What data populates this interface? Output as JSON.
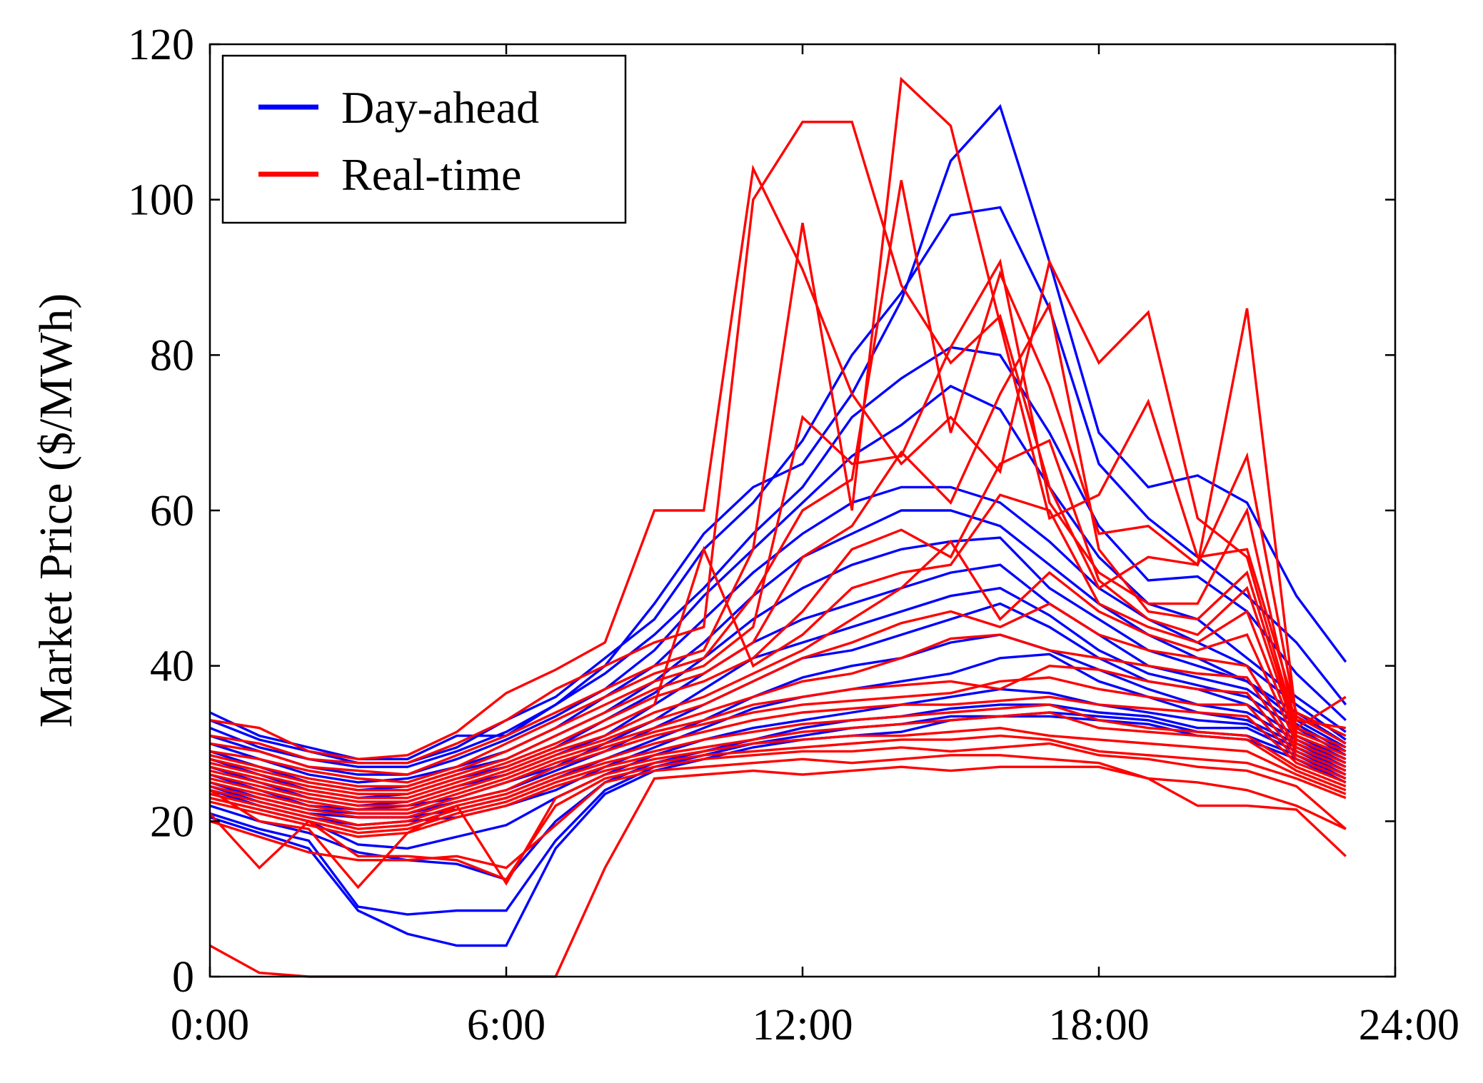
{
  "chart_data": {
    "type": "line",
    "title": "",
    "xlabel": "",
    "ylabel": "Market Price ($/MWh)",
    "xlim": [
      0,
      24
    ],
    "ylim": [
      0,
      120
    ],
    "grid": false,
    "legend_position": "top-left",
    "x_ticks": [
      0,
      6,
      12,
      18,
      24
    ],
    "x_tick_labels": [
      "0:00",
      "6:00",
      "12:00",
      "18:00",
      "24:00"
    ],
    "y_ticks": [
      0,
      20,
      40,
      60,
      80,
      100,
      120
    ],
    "y_tick_labels": [
      "0",
      "20",
      "40",
      "60",
      "80",
      "100",
      "120"
    ],
    "hours": [
      0,
      1,
      2,
      3,
      4,
      5,
      6,
      7,
      8,
      9,
      10,
      11,
      12,
      13,
      14,
      15,
      16,
      17,
      18,
      19,
      20,
      21,
      22,
      23
    ],
    "series": [
      {
        "name": "Day-ahead",
        "color": "#0000ff",
        "lines": [
          [
            34.0,
            31.0,
            29.5,
            28.0,
            28.0,
            31.0,
            31.0,
            35.0,
            40.0,
            48.0,
            57.0,
            63.0,
            66.0,
            75.0,
            87.0,
            105.0,
            112.0,
            92.0,
            70.0,
            63.0,
            64.5,
            61.0,
            49.0,
            40.5
          ],
          [
            33.0,
            30.5,
            29.0,
            27.5,
            27.5,
            29.5,
            33.0,
            36.0,
            41.0,
            46.0,
            55.0,
            61.0,
            69.0,
            80.0,
            88.0,
            98.0,
            99.0,
            86.0,
            66.0,
            59.0,
            54.0,
            49.0,
            43.0,
            35.0
          ],
          [
            32.0,
            29.5,
            28.0,
            27.0,
            27.0,
            29.0,
            31.5,
            35.0,
            39.0,
            44.0,
            50.0,
            57.0,
            63.0,
            72.0,
            77.0,
            81.0,
            80.0,
            70.0,
            58.0,
            51.0,
            51.5,
            47.0,
            39.0,
            33.0
          ],
          [
            31.0,
            29.0,
            27.0,
            26.0,
            26.0,
            28.0,
            30.5,
            33.5,
            37.0,
            42.0,
            49.0,
            55.0,
            61.0,
            67.0,
            71.0,
            76.0,
            73.0,
            63.0,
            54.0,
            48.0,
            46.0,
            41.0,
            36.0,
            31.5
          ],
          [
            30.0,
            28.0,
            26.0,
            25.0,
            25.5,
            27.0,
            29.0,
            32.0,
            36.0,
            40.0,
            46.0,
            52.0,
            57.0,
            61.0,
            63.0,
            63.0,
            61.0,
            56.0,
            50.0,
            46.0,
            43.0,
            40.0,
            35.0,
            30.5
          ],
          [
            29.0,
            27.0,
            25.0,
            24.0,
            24.5,
            26.5,
            28.0,
            31.0,
            34.0,
            38.0,
            43.0,
            49.0,
            54.0,
            57.0,
            60.0,
            60.0,
            58.0,
            53.0,
            48.0,
            44.0,
            41.0,
            38.0,
            34.0,
            30.0
          ],
          [
            28.0,
            26.0,
            24.0,
            23.0,
            23.5,
            25.5,
            27.0,
            29.5,
            33.0,
            36.5,
            41.0,
            46.0,
            50.0,
            53.0,
            55.0,
            56.0,
            56.5,
            50.0,
            46.0,
            42.0,
            40.0,
            38.0,
            33.0,
            29.5
          ],
          [
            27.0,
            25.0,
            23.0,
            22.0,
            22.5,
            24.5,
            26.0,
            28.5,
            31.0,
            35.0,
            39.0,
            43.0,
            46.0,
            48.0,
            50.0,
            52.0,
            53.0,
            48.0,
            44.0,
            40.0,
            38.5,
            37.0,
            32.5,
            29.0
          ],
          [
            26.0,
            24.0,
            22.0,
            21.5,
            22.0,
            23.0,
            25.0,
            27.0,
            30.0,
            33.0,
            37.0,
            41.0,
            43.0,
            45.0,
            47.0,
            49.0,
            50.0,
            46.5,
            42.0,
            39.0,
            37.5,
            36.0,
            32.0,
            28.5
          ],
          [
            25.0,
            23.0,
            21.5,
            21.0,
            21.0,
            22.5,
            24.0,
            26.5,
            29.0,
            32.0,
            35.0,
            38.0,
            41.0,
            42.0,
            44.0,
            46.0,
            48.0,
            45.0,
            41.0,
            38.0,
            37.0,
            35.0,
            31.0,
            28.0
          ],
          [
            24.5,
            22.5,
            21.0,
            20.5,
            20.5,
            21.5,
            23.0,
            25.5,
            28.0,
            30.5,
            33.0,
            36.0,
            38.5,
            40.0,
            41.0,
            43.0,
            44.0,
            42.0,
            39.5,
            37.0,
            35.0,
            34.0,
            30.5,
            27.5
          ],
          [
            24.0,
            22.0,
            20.5,
            19.5,
            20.0,
            20.5,
            22.0,
            24.0,
            27.0,
            29.5,
            32.0,
            34.5,
            36.0,
            37.0,
            38.0,
            39.0,
            41.0,
            41.5,
            38.0,
            36.0,
            34.0,
            33.0,
            30.0,
            27.0
          ],
          [
            23.0,
            21.5,
            20.0,
            17.0,
            16.5,
            18.0,
            19.5,
            23.0,
            26.0,
            28.5,
            30.5,
            32.0,
            33.0,
            34.0,
            35.0,
            36.0,
            37.0,
            36.5,
            35.0,
            34.0,
            33.0,
            32.5,
            29.5,
            26.5
          ],
          [
            22.0,
            20.0,
            18.5,
            16.0,
            15.0,
            14.5,
            12.5,
            20.0,
            25.0,
            27.5,
            29.0,
            30.5,
            32.0,
            33.0,
            33.5,
            34.5,
            35.0,
            35.0,
            34.0,
            33.5,
            32.0,
            32.0,
            29.0,
            26.0
          ],
          [
            21.0,
            19.0,
            17.5,
            9.0,
            8.0,
            8.5,
            8.5,
            17.5,
            24.0,
            27.0,
            28.5,
            30.0,
            31.0,
            32.0,
            32.5,
            33.5,
            33.5,
            34.0,
            33.5,
            33.0,
            31.5,
            31.0,
            28.5,
            25.5
          ],
          [
            20.5,
            18.5,
            16.5,
            8.5,
            5.5,
            4.0,
            4.0,
            16.5,
            23.5,
            26.5,
            28.0,
            29.5,
            30.5,
            31.0,
            31.5,
            33.0,
            33.5,
            33.5,
            33.0,
            32.5,
            31.0,
            30.5,
            28.0,
            25.0
          ]
        ]
      },
      {
        "name": "Real-time",
        "color": "#ff0000",
        "lines": [
          [
            33.0,
            32.0,
            29.0,
            28.0,
            28.5,
            31.5,
            36.5,
            39.5,
            43.0,
            60.0,
            60.0,
            104.0,
            91.0,
            75.0,
            66.0,
            72.0,
            65.0,
            92.0,
            79.0,
            85.5,
            59.0,
            54.0,
            32.0,
            36.0
          ],
          [
            31.0,
            30.0,
            28.0,
            27.5,
            27.5,
            30.0,
            33.0,
            37.0,
            40.0,
            43.0,
            45.0,
            100.0,
            110.0,
            110.0,
            89.0,
            79.0,
            85.0,
            63.0,
            50.0,
            54.0,
            53.0,
            86.0,
            33.0,
            32.0
          ],
          [
            30.0,
            29.0,
            27.0,
            26.5,
            26.0,
            28.5,
            31.0,
            34.0,
            37.0,
            40.0,
            42.0,
            55.0,
            97.0,
            60.0,
            115.5,
            109.5,
            84.0,
            59.0,
            62.0,
            74.0,
            54.0,
            55.0,
            34.0,
            31.0
          ],
          [
            29.0,
            28.0,
            26.5,
            25.5,
            25.0,
            27.0,
            30.0,
            33.0,
            36.0,
            39.0,
            41.0,
            49.0,
            60.0,
            64.0,
            102.5,
            70.0,
            90.5,
            76.0,
            57.0,
            58.0,
            53.0,
            67.0,
            33.5,
            30.0
          ],
          [
            28.5,
            27.0,
            25.5,
            24.5,
            24.5,
            26.5,
            29.0,
            32.0,
            35.0,
            38.0,
            40.0,
            45.0,
            72.0,
            66.0,
            67.0,
            81.0,
            92.0,
            61.0,
            52.0,
            48.0,
            48.0,
            60.0,
            32.0,
            29.5
          ],
          [
            28.0,
            26.5,
            25.0,
            24.0,
            24.0,
            26.0,
            28.0,
            31.0,
            34.0,
            37.0,
            39.0,
            43.0,
            54.0,
            58.0,
            67.5,
            61.0,
            75.0,
            86.5,
            55.0,
            47.0,
            46.0,
            52.0,
            31.5,
            29.0
          ],
          [
            27.5,
            26.0,
            24.5,
            23.5,
            23.5,
            25.5,
            27.5,
            30.0,
            33.0,
            36.0,
            38.0,
            41.0,
            47.0,
            55.0,
            57.5,
            54.0,
            66.0,
            69.0,
            51.0,
            46.0,
            44.0,
            50.0,
            31.0,
            28.5
          ],
          [
            27.0,
            25.5,
            24.0,
            23.0,
            23.0,
            25.0,
            27.0,
            29.5,
            32.0,
            35.0,
            55.0,
            40.0,
            44.0,
            50.0,
            52.0,
            53.0,
            62.0,
            60.0,
            48.0,
            45.0,
            43.0,
            47.0,
            30.5,
            28.0
          ],
          [
            26.5,
            25.0,
            23.5,
            22.5,
            22.5,
            24.5,
            26.5,
            29.0,
            31.0,
            34.0,
            36.0,
            39.0,
            42.0,
            46.0,
            50.0,
            56.0,
            46.0,
            52.0,
            47.0,
            44.0,
            42.0,
            44.0,
            30.0,
            27.5
          ],
          [
            26.0,
            24.5,
            23.0,
            22.0,
            22.0,
            24.0,
            26.0,
            28.5,
            30.5,
            33.0,
            35.0,
            38.0,
            41.0,
            43.0,
            45.5,
            47.0,
            45.0,
            48.0,
            44.0,
            42.0,
            41.0,
            40.0,
            29.5,
            27.0
          ],
          [
            25.5,
            24.0,
            22.5,
            21.5,
            21.5,
            23.5,
            25.5,
            28.0,
            30.0,
            32.0,
            34.0,
            36.0,
            38.0,
            39.0,
            41.0,
            43.5,
            44.0,
            42.0,
            41.0,
            40.0,
            39.0,
            38.5,
            29.0,
            26.5
          ],
          [
            25.0,
            23.5,
            22.0,
            21.0,
            21.0,
            23.0,
            25.0,
            27.5,
            29.5,
            31.5,
            33.0,
            35.0,
            36.0,
            37.0,
            37.5,
            38.0,
            37.0,
            40.0,
            39.5,
            38.0,
            37.0,
            36.5,
            28.5,
            26.0
          ],
          [
            24.5,
            23.0,
            21.5,
            20.5,
            20.5,
            22.5,
            24.0,
            27.0,
            29.0,
            31.0,
            32.5,
            34.0,
            35.0,
            35.5,
            36.0,
            36.5,
            38.0,
            38.5,
            37.0,
            36.0,
            35.0,
            35.0,
            28.0,
            25.5
          ],
          [
            24.0,
            22.5,
            21.0,
            19.5,
            20.0,
            22.0,
            23.5,
            26.0,
            28.0,
            30.0,
            31.5,
            33.0,
            34.0,
            34.5,
            35.0,
            35.0,
            35.5,
            36.0,
            35.0,
            34.5,
            34.0,
            33.5,
            27.5,
            25.0
          ],
          [
            23.5,
            22.0,
            20.5,
            19.0,
            19.5,
            21.5,
            23.0,
            25.5,
            27.5,
            29.0,
            30.5,
            31.5,
            32.5,
            33.0,
            33.5,
            34.0,
            34.5,
            35.0,
            33.0,
            32.0,
            31.5,
            31.0,
            27.0,
            24.5
          ],
          [
            23.0,
            21.5,
            20.0,
            18.5,
            19.0,
            21.0,
            22.5,
            25.0,
            27.0,
            28.5,
            29.5,
            30.5,
            31.5,
            32.0,
            32.5,
            33.0,
            33.5,
            34.0,
            32.0,
            31.5,
            31.0,
            30.5,
            26.5,
            24.0
          ],
          [
            22.5,
            21.0,
            19.5,
            18.0,
            18.5,
            20.5,
            22.0,
            24.5,
            26.5,
            28.0,
            29.0,
            30.0,
            30.5,
            31.0,
            31.0,
            31.5,
            32.0,
            31.0,
            30.5,
            30.0,
            29.5,
            29.0,
            26.0,
            23.5
          ],
          [
            24.0,
            20.0,
            19.0,
            11.5,
            18.5,
            22.0,
            12.0,
            23.0,
            26.0,
            27.5,
            28.5,
            29.0,
            29.5,
            30.0,
            30.5,
            30.5,
            31.0,
            30.5,
            29.0,
            28.5,
            28.0,
            27.5,
            25.5,
            23.0
          ],
          [
            21.0,
            14.0,
            20.0,
            15.5,
            15.5,
            15.0,
            12.5,
            22.0,
            25.5,
            27.0,
            28.0,
            28.5,
            29.0,
            29.0,
            29.5,
            29.0,
            29.5,
            30.0,
            28.5,
            28.0,
            27.0,
            26.5,
            24.5,
            19.0
          ],
          [
            20.0,
            18.0,
            16.0,
            15.0,
            15.0,
            15.5,
            14.0,
            19.5,
            25.0,
            26.5,
            27.0,
            27.5,
            28.0,
            27.5,
            28.0,
            28.5,
            28.5,
            28.0,
            27.5,
            25.5,
            22.0,
            22.0,
            21.5,
            15.5
          ],
          [
            4.0,
            0.5,
            0.0,
            0.0,
            0.0,
            0.0,
            0.0,
            0.0,
            14.0,
            25.5,
            26.0,
            26.5,
            26.0,
            26.5,
            27.0,
            26.5,
            27.0,
            27.0,
            27.0,
            25.5,
            25.0,
            24.0,
            22.0,
            19.0
          ]
        ]
      }
    ]
  }
}
